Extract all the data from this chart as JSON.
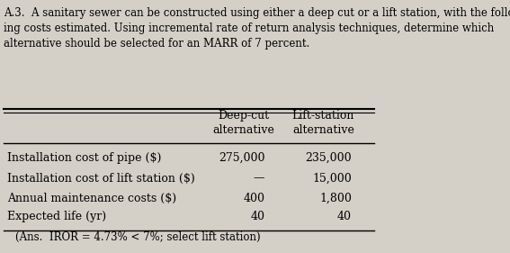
{
  "header_text": "A.3.  A sanitary sewer can be constructed using either a deep cut or a lift station, with the follow-\ning costs estimated. Using incremental rate of return analysis techniques, determine which\nalternative should be selected for an MARR of 7 percent.",
  "col_headers": [
    "Deep-cut\nalternative",
    "Lift-station\nalternative"
  ],
  "row_labels": [
    "Installation cost of pipe ($)",
    "Installation cost of lift station ($)",
    "Annual maintenance costs ($)",
    "Expected life (yr)"
  ],
  "col1_values": [
    "275,000",
    "—",
    "400",
    "40"
  ],
  "col2_values": [
    "235,000",
    "15,000",
    "1,800",
    "40"
  ],
  "footer_text": "(Ans.  IROR = 4.73% < 7%; select lift station)",
  "bg_color": "#d4d0c8",
  "font_size_header": 8.5,
  "font_size_table": 9.0,
  "font_size_footer": 8.5
}
